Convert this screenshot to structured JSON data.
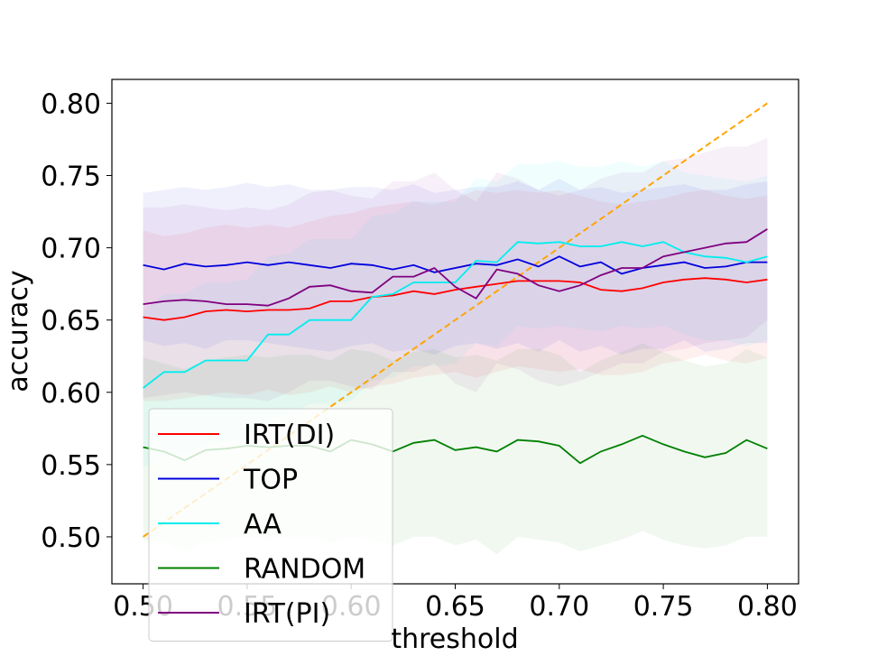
{
  "chart_data": {
    "type": "line",
    "xlabel": "threshold",
    "ylabel": "accuracy",
    "xlim": [
      0.485,
      0.815
    ],
    "ylim": [
      0.4675,
      0.8165
    ],
    "x_ticks": [
      "0.50",
      "0.55",
      "0.60",
      "0.65",
      "0.70",
      "0.75",
      "0.80"
    ],
    "y_ticks": [
      "0.50",
      "0.55",
      "0.60",
      "0.65",
      "0.70",
      "0.75",
      "0.80"
    ],
    "grid": false,
    "legend_position": "lower-left",
    "x": [
      0.5,
      0.51,
      0.52,
      0.53,
      0.54,
      0.55,
      0.56,
      0.57,
      0.58,
      0.59,
      0.6,
      0.61,
      0.62,
      0.63,
      0.64,
      0.65,
      0.66,
      0.67,
      0.68,
      0.69,
      0.7,
      0.71,
      0.72,
      0.73,
      0.74,
      0.75,
      0.76,
      0.77,
      0.78,
      0.79,
      0.8
    ],
    "series": [
      {
        "name": "IRT(DI)",
        "color": "#ff0000",
        "values": [
          0.652,
          0.65,
          0.652,
          0.656,
          0.657,
          0.656,
          0.657,
          0.657,
          0.658,
          0.663,
          0.663,
          0.666,
          0.667,
          0.67,
          0.668,
          0.671,
          0.673,
          0.675,
          0.677,
          0.677,
          0.677,
          0.676,
          0.671,
          0.67,
          0.672,
          0.676,
          0.678,
          0.679,
          0.678,
          0.676,
          0.678
        ],
        "band_lower": [
          0.594,
          0.594,
          0.596,
          0.598,
          0.6,
          0.598,
          0.602,
          0.598,
          0.6,
          0.604,
          0.6,
          0.604,
          0.606,
          0.61,
          0.612,
          0.614,
          0.61,
          0.614,
          0.618,
          0.616,
          0.614,
          0.616,
          0.612,
          0.612,
          0.614,
          0.62,
          0.622,
          0.626,
          0.622,
          0.62,
          0.624
        ],
        "band_upper": [
          0.712,
          0.708,
          0.71,
          0.714,
          0.716,
          0.714,
          0.716,
          0.714,
          0.718,
          0.722,
          0.724,
          0.728,
          0.73,
          0.732,
          0.73,
          0.734,
          0.74,
          0.738,
          0.74,
          0.738,
          0.74,
          0.736,
          0.732,
          0.73,
          0.732,
          0.734,
          0.738,
          0.74,
          0.736,
          0.734,
          0.736
        ]
      },
      {
        "name": "TOP",
        "color": "#0000dd",
        "values": [
          0.688,
          0.685,
          0.689,
          0.687,
          0.688,
          0.69,
          0.688,
          0.69,
          0.688,
          0.686,
          0.689,
          0.688,
          0.685,
          0.688,
          0.683,
          0.686,
          0.689,
          0.688,
          0.692,
          0.687,
          0.694,
          0.687,
          0.69,
          0.682,
          0.686,
          0.688,
          0.69,
          0.686,
          0.687,
          0.69,
          0.69
        ],
        "band_lower": [
          0.636,
          0.632,
          0.634,
          0.63,
          0.636,
          0.636,
          0.634,
          0.632,
          0.63,
          0.628,
          0.632,
          0.634,
          0.628,
          0.63,
          0.626,
          0.632,
          0.634,
          0.63,
          0.634,
          0.628,
          0.636,
          0.628,
          0.632,
          0.626,
          0.63,
          0.63,
          0.636,
          0.628,
          0.63,
          0.634,
          0.634
        ],
        "band_upper": [
          0.738,
          0.74,
          0.742,
          0.74,
          0.742,
          0.745,
          0.742,
          0.744,
          0.74,
          0.74,
          0.742,
          0.742,
          0.74,
          0.744,
          0.738,
          0.74,
          0.742,
          0.742,
          0.746,
          0.74,
          0.748,
          0.74,
          0.742,
          0.738,
          0.74,
          0.742,
          0.744,
          0.74,
          0.74,
          0.744,
          0.746
        ]
      },
      {
        "name": "AA",
        "color": "#00eeee",
        "values": [
          0.603,
          0.614,
          0.614,
          0.622,
          0.622,
          0.622,
          0.64,
          0.64,
          0.65,
          0.65,
          0.65,
          0.666,
          0.668,
          0.676,
          0.676,
          0.676,
          0.691,
          0.69,
          0.704,
          0.703,
          0.704,
          0.701,
          0.701,
          0.704,
          0.701,
          0.704,
          0.697,
          0.694,
          0.693,
          0.69,
          0.694
        ],
        "band_lower": [
          0.548,
          0.556,
          0.558,
          0.564,
          0.566,
          0.566,
          0.582,
          0.584,
          0.592,
          0.592,
          0.594,
          0.608,
          0.61,
          0.618,
          0.618,
          0.62,
          0.634,
          0.632,
          0.646,
          0.644,
          0.646,
          0.644,
          0.642,
          0.646,
          0.644,
          0.646,
          0.64,
          0.636,
          0.636,
          0.632,
          0.636
        ],
        "band_upper": [
          0.656,
          0.668,
          0.668,
          0.676,
          0.676,
          0.678,
          0.694,
          0.696,
          0.706,
          0.706,
          0.706,
          0.722,
          0.724,
          0.732,
          0.732,
          0.732,
          0.748,
          0.746,
          0.758,
          0.758,
          0.76,
          0.756,
          0.756,
          0.76,
          0.756,
          0.76,
          0.752,
          0.75,
          0.748,
          0.746,
          0.75
        ]
      },
      {
        "name": "RANDOM",
        "color": "#008000",
        "values": [
          0.562,
          0.559,
          0.553,
          0.56,
          0.561,
          0.563,
          0.562,
          0.563,
          0.563,
          0.559,
          0.567,
          0.564,
          0.559,
          0.565,
          0.567,
          0.56,
          0.562,
          0.559,
          0.567,
          0.566,
          0.563,
          0.551,
          0.559,
          0.564,
          0.57,
          0.564,
          0.559,
          0.555,
          0.558,
          0.567,
          0.561
        ],
        "band_lower": [
          0.498,
          0.496,
          0.49,
          0.496,
          0.498,
          0.5,
          0.498,
          0.5,
          0.5,
          0.496,
          0.5,
          0.498,
          0.494,
          0.5,
          0.5,
          0.494,
          0.498,
          0.488,
          0.5,
          0.498,
          0.496,
          0.49,
          0.494,
          0.498,
          0.504,
          0.498,
          0.494,
          0.492,
          0.494,
          0.5,
          0.5
        ],
        "band_upper": [
          0.624,
          0.62,
          0.616,
          0.622,
          0.624,
          0.626,
          0.624,
          0.626,
          0.626,
          0.622,
          0.63,
          0.628,
          0.622,
          0.628,
          0.63,
          0.624,
          0.626,
          0.622,
          0.63,
          0.63,
          0.626,
          0.614,
          0.622,
          0.628,
          0.634,
          0.628,
          0.622,
          0.618,
          0.62,
          0.63,
          0.624
        ]
      },
      {
        "name": "IRT(PI)",
        "color": "#800080",
        "values": [
          0.661,
          0.663,
          0.664,
          0.663,
          0.661,
          0.661,
          0.66,
          0.665,
          0.673,
          0.674,
          0.67,
          0.669,
          0.68,
          0.68,
          0.686,
          0.673,
          0.665,
          0.685,
          0.682,
          0.674,
          0.67,
          0.674,
          0.681,
          0.686,
          0.686,
          0.694,
          0.697,
          0.7,
          0.703,
          0.704,
          0.713
        ],
        "band_lower": [
          0.596,
          0.598,
          0.6,
          0.598,
          0.596,
          0.596,
          0.594,
          0.6,
          0.608,
          0.608,
          0.604,
          0.602,
          0.614,
          0.614,
          0.62,
          0.606,
          0.6,
          0.62,
          0.616,
          0.608,
          0.604,
          0.608,
          0.614,
          0.62,
          0.62,
          0.628,
          0.63,
          0.634,
          0.636,
          0.638,
          0.65
        ],
        "band_upper": [
          0.728,
          0.728,
          0.73,
          0.728,
          0.726,
          0.728,
          0.726,
          0.73,
          0.738,
          0.74,
          0.736,
          0.734,
          0.746,
          0.746,
          0.752,
          0.74,
          0.732,
          0.752,
          0.748,
          0.74,
          0.736,
          0.74,
          0.748,
          0.752,
          0.752,
          0.76,
          0.762,
          0.766,
          0.77,
          0.77,
          0.776
        ]
      }
    ],
    "reference_line": {
      "x": [
        0.5,
        0.8
      ],
      "y": [
        0.5,
        0.8
      ],
      "color": "#ffa500",
      "style": "dashed"
    }
  }
}
